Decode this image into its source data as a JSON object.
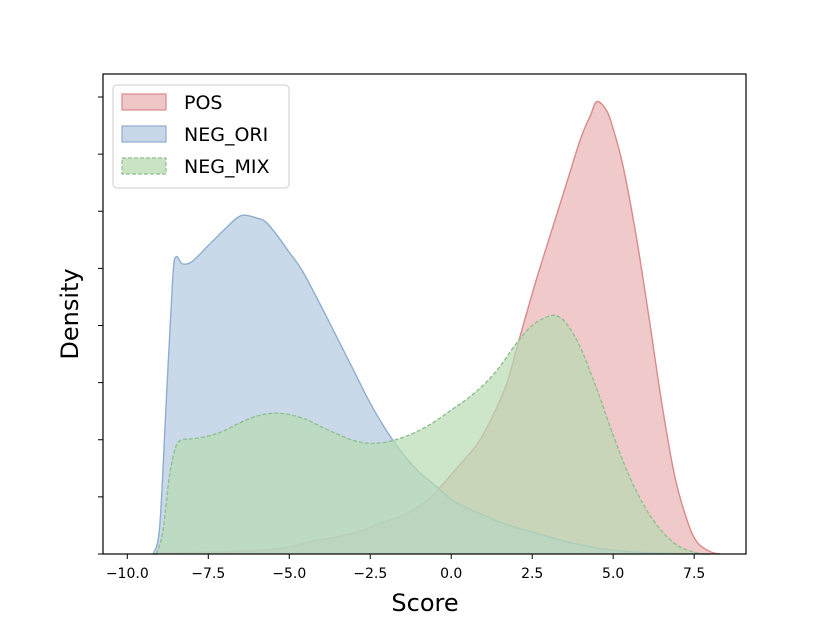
{
  "chart_data": {
    "type": "area",
    "title": "",
    "xlabel": "Score",
    "ylabel": "Density",
    "xlim": [
      -10.75,
      9.1
    ],
    "ylim": [
      0,
      1.0
    ],
    "x_ticks": [
      -10.0,
      -7.5,
      -5.0,
      -2.5,
      0.0,
      2.5,
      5.0,
      7.5
    ],
    "x_tick_labels": [
      "−10.0",
      "−7.5",
      "−5.0",
      "−2.5",
      "0.0",
      "2.5",
      "5.0",
      "7.5"
    ],
    "y_tick_labels_visible": false,
    "legend_position": "top-left",
    "series": [
      {
        "name": "POS",
        "color": "#d98a8a",
        "fill_color": "#e9b3b3",
        "line_style": "solid",
        "x": [
          -9.2,
          -8.5,
          -7.5,
          -6.5,
          -5.5,
          -4.8,
          -4.3,
          -3.5,
          -2.8,
          -2.3,
          -1.5,
          -0.7,
          0.2,
          0.8,
          1.2,
          1.7,
          2.1,
          2.5,
          2.8,
          3.2,
          3.6,
          4.0,
          4.3,
          4.5,
          4.8,
          5.0,
          5.3,
          5.7,
          6.1,
          6.5,
          6.9,
          7.3,
          7.6,
          8.0,
          8.3
        ],
        "values": [
          0.0,
          0.002,
          0.004,
          0.006,
          0.01,
          0.018,
          0.028,
          0.038,
          0.05,
          0.065,
          0.085,
          0.12,
          0.19,
          0.24,
          0.29,
          0.37,
          0.47,
          0.57,
          0.64,
          0.73,
          0.82,
          0.91,
          0.96,
          0.99,
          0.97,
          0.93,
          0.85,
          0.7,
          0.52,
          0.33,
          0.17,
          0.07,
          0.025,
          0.005,
          0.0
        ]
      },
      {
        "name": "NEG_ORI",
        "color": "#8eaed0",
        "fill_color": "#b4c9e0",
        "line_style": "solid",
        "x": [
          -9.2,
          -9.0,
          -8.8,
          -8.6,
          -8.5,
          -8.3,
          -8.0,
          -7.5,
          -7.0,
          -6.5,
          -6.0,
          -5.7,
          -5.3,
          -5.0,
          -4.6,
          -4.0,
          -3.5,
          -3.0,
          -2.5,
          -2.0,
          -1.5,
          -1.0,
          -0.5,
          0.0,
          0.5,
          1.0,
          1.5,
          2.0,
          2.5,
          3.0,
          3.5,
          4.0,
          4.5,
          5.0,
          5.5,
          6.0,
          6.5,
          7.0,
          7.5,
          8.0
        ],
        "values": [
          0.0,
          0.06,
          0.33,
          0.6,
          0.65,
          0.635,
          0.64,
          0.675,
          0.71,
          0.74,
          0.735,
          0.725,
          0.69,
          0.66,
          0.62,
          0.54,
          0.47,
          0.4,
          0.33,
          0.27,
          0.22,
          0.18,
          0.15,
          0.12,
          0.1,
          0.085,
          0.07,
          0.058,
          0.048,
          0.038,
          0.028,
          0.02,
          0.013,
          0.008,
          0.005,
          0.003,
          0.002,
          0.001,
          0.0005,
          0.0
        ]
      },
      {
        "name": "NEG_MIX",
        "color": "#8fc08f",
        "fill_color": "#b8dab2",
        "line_style": "dashed",
        "x": [
          -9.1,
          -8.9,
          -8.7,
          -8.5,
          -8.3,
          -8.0,
          -7.5,
          -7.0,
          -6.5,
          -6.0,
          -5.5,
          -5.0,
          -4.5,
          -4.0,
          -3.5,
          -3.0,
          -2.5,
          -2.0,
          -1.5,
          -1.0,
          -0.5,
          0.0,
          0.5,
          1.0,
          1.5,
          2.0,
          2.5,
          3.0,
          3.3,
          3.6,
          4.0,
          4.5,
          5.0,
          5.5,
          6.0,
          6.5,
          7.0,
          7.5,
          7.8
        ],
        "values": [
          0.0,
          0.05,
          0.17,
          0.235,
          0.25,
          0.252,
          0.258,
          0.27,
          0.288,
          0.302,
          0.308,
          0.305,
          0.295,
          0.278,
          0.262,
          0.248,
          0.242,
          0.245,
          0.255,
          0.27,
          0.29,
          0.315,
          0.34,
          0.37,
          0.41,
          0.46,
          0.5,
          0.52,
          0.52,
          0.5,
          0.45,
          0.36,
          0.26,
          0.17,
          0.1,
          0.05,
          0.018,
          0.004,
          0.0
        ]
      }
    ]
  }
}
